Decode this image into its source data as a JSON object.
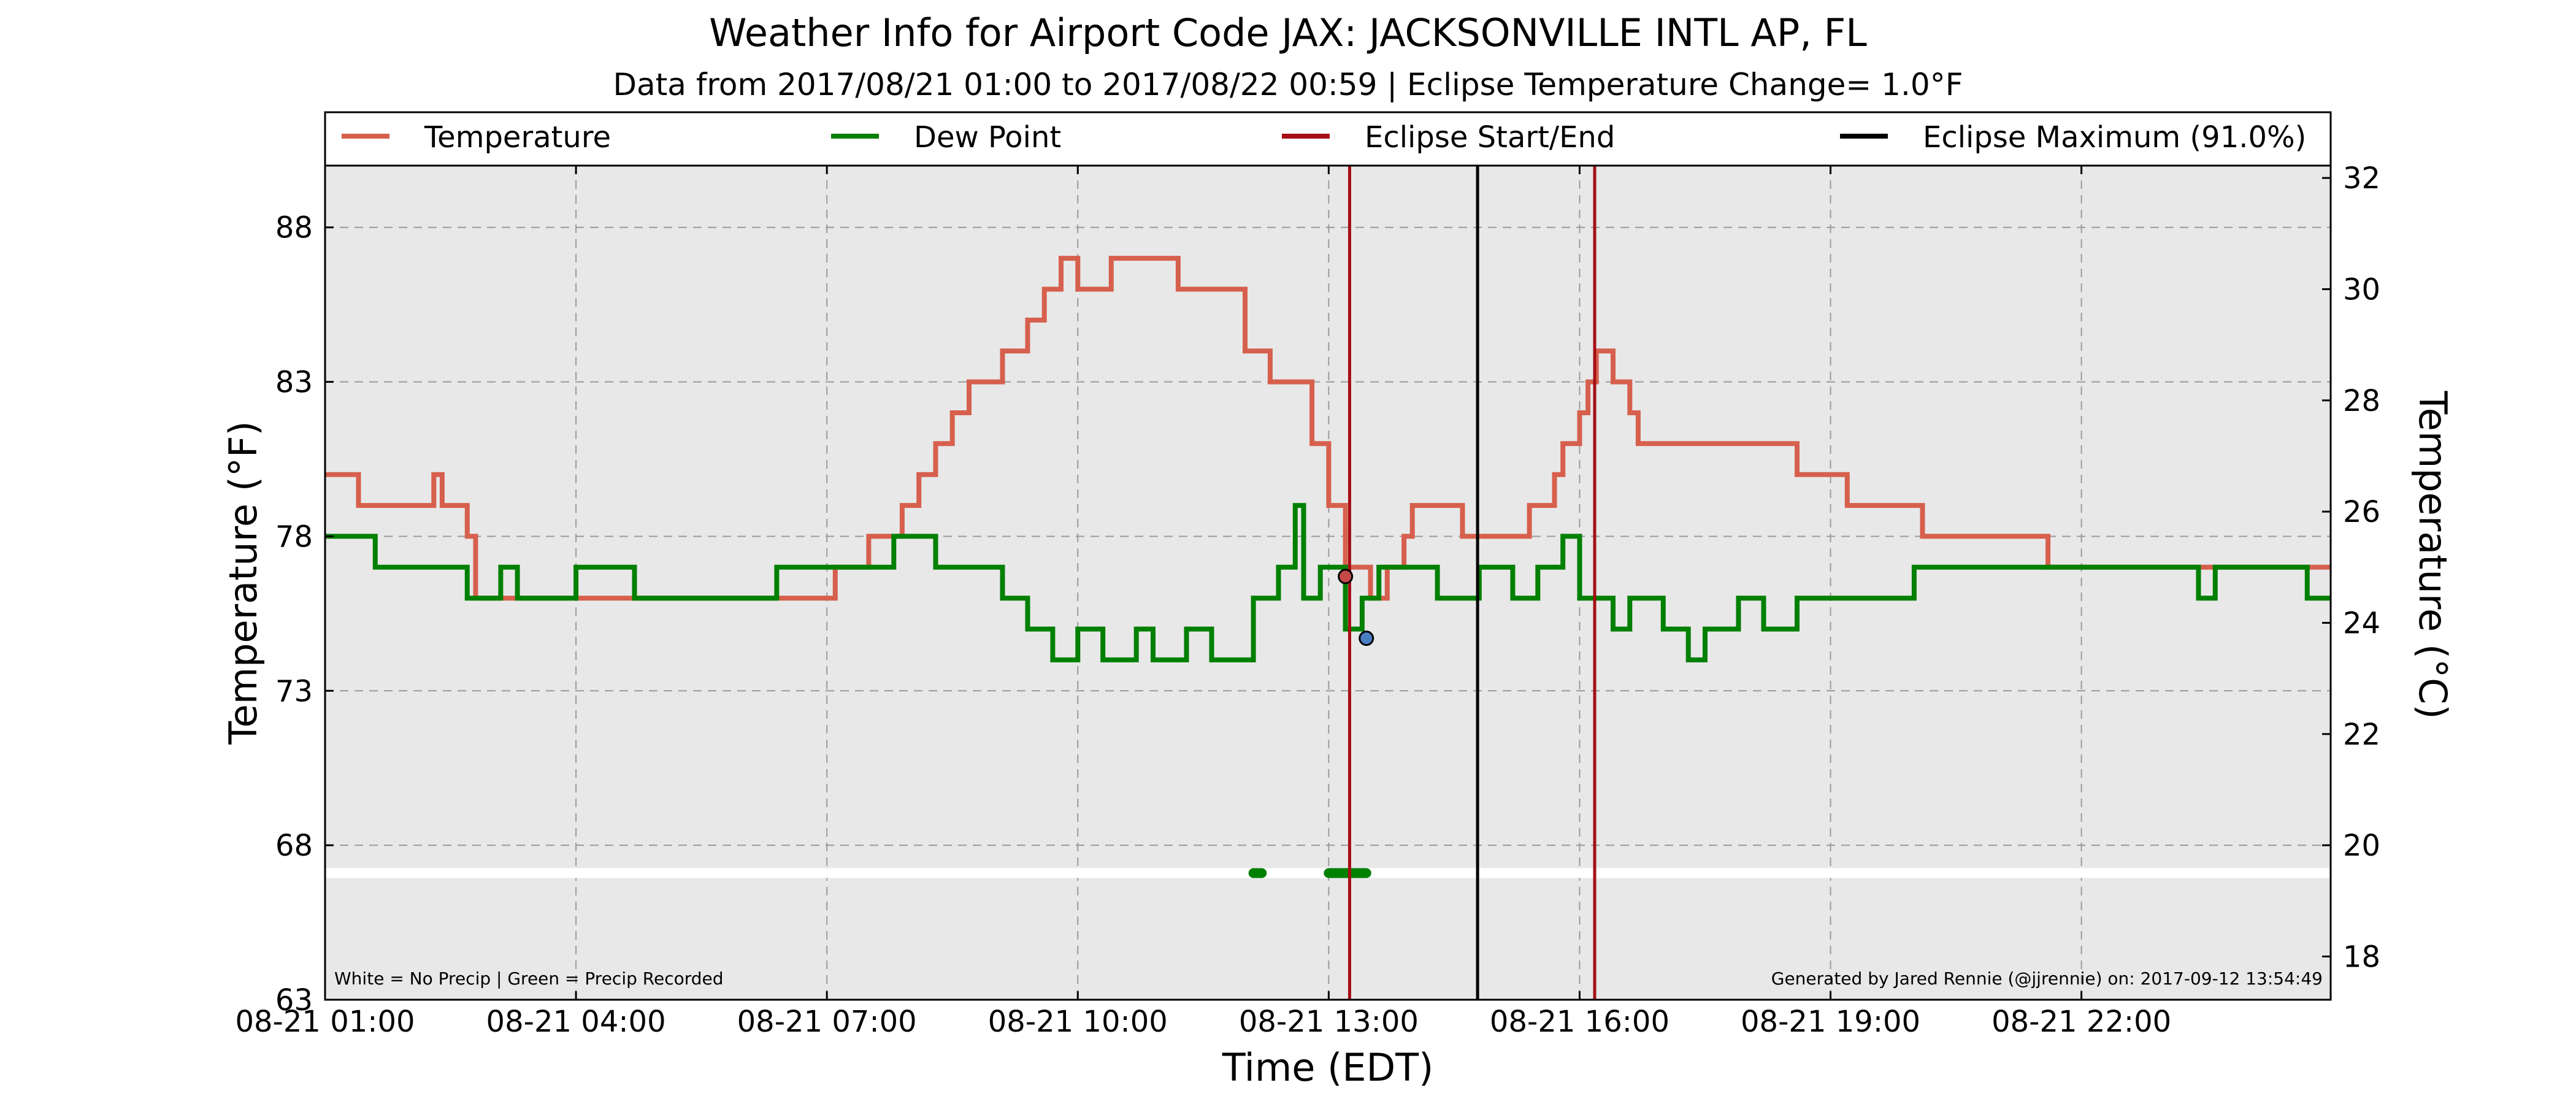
{
  "chart_data": {
    "type": "line",
    "title": "Weather Info for Airport Code JAX: JACKSONVILLE INTL AP, FL",
    "subtitle": "Data from 2017/08/21 01:00 to 2017/08/22 00:59 | Eclipse Temperature Change= 1.0°F",
    "xlabel": "Time (EDT)",
    "ylabel_left": "Temperature (°F)",
    "ylabel_right": "Temperature (°C)",
    "ylim_f": [
      63,
      90
    ],
    "xlim_hours": [
      1.0,
      24.98
    ],
    "x_ticks": [
      {
        "h": 1,
        "label": "08-21 01:00"
      },
      {
        "h": 4,
        "label": "08-21 04:00"
      },
      {
        "h": 7,
        "label": "08-21 07:00"
      },
      {
        "h": 10,
        "label": "08-21 10:00"
      },
      {
        "h": 13,
        "label": "08-21 13:00"
      },
      {
        "h": 16,
        "label": "08-21 16:00"
      },
      {
        "h": 19,
        "label": "08-21 19:00"
      },
      {
        "h": 22,
        "label": "08-21 22:00"
      }
    ],
    "y_ticks_f": [
      88,
      83,
      78,
      73,
      68,
      63
    ],
    "y_ticks_c": [
      32,
      30,
      28,
      26,
      24,
      22,
      20,
      18
    ],
    "grid": true,
    "legend_position": "top",
    "legend": [
      {
        "label": "Temperature",
        "color": "#d6604d"
      },
      {
        "label": "Dew Point",
        "color": "#008000"
      },
      {
        "label": "Eclipse Start/End",
        "color": "#a50f15"
      },
      {
        "label": "Eclipse Maximum (91.0%)",
        "color": "#000000"
      }
    ],
    "series": [
      {
        "name": "Temperature",
        "color": "#d6604d",
        "points": [
          [
            1.0,
            80
          ],
          [
            1.4,
            80
          ],
          [
            1.4,
            79
          ],
          [
            2.3,
            79
          ],
          [
            2.3,
            80
          ],
          [
            2.4,
            80
          ],
          [
            2.4,
            79
          ],
          [
            2.7,
            79
          ],
          [
            2.7,
            78
          ],
          [
            2.8,
            78
          ],
          [
            2.8,
            77
          ],
          [
            2.8,
            77
          ],
          [
            2.8,
            76
          ],
          [
            7.1,
            76
          ],
          [
            7.1,
            77
          ],
          [
            7.5,
            77
          ],
          [
            7.5,
            78
          ],
          [
            7.9,
            78
          ],
          [
            7.9,
            79
          ],
          [
            8.1,
            79
          ],
          [
            8.1,
            80
          ],
          [
            8.3,
            80
          ],
          [
            8.3,
            81
          ],
          [
            8.5,
            81
          ],
          [
            8.5,
            82
          ],
          [
            8.7,
            82
          ],
          [
            8.7,
            83
          ],
          [
            9.1,
            83
          ],
          [
            9.1,
            84
          ],
          [
            9.4,
            84
          ],
          [
            9.4,
            85
          ],
          [
            9.6,
            85
          ],
          [
            9.6,
            86
          ],
          [
            9.8,
            86
          ],
          [
            9.8,
            87
          ],
          [
            10.0,
            87
          ],
          [
            10.0,
            86
          ],
          [
            10.4,
            86
          ],
          [
            10.4,
            87
          ],
          [
            11.2,
            87
          ],
          [
            11.2,
            86
          ],
          [
            12.0,
            86
          ],
          [
            12.0,
            84
          ],
          [
            12.3,
            84
          ],
          [
            12.3,
            83
          ],
          [
            12.8,
            83
          ],
          [
            12.8,
            81
          ],
          [
            13.0,
            81
          ],
          [
            13.0,
            79
          ],
          [
            13.2,
            79
          ],
          [
            13.2,
            77
          ],
          [
            13.5,
            77
          ],
          [
            13.5,
            76
          ],
          [
            13.7,
            76
          ],
          [
            13.7,
            77
          ],
          [
            13.9,
            77
          ],
          [
            13.9,
            78
          ],
          [
            14.0,
            78
          ],
          [
            14.0,
            79
          ],
          [
            14.6,
            79
          ],
          [
            14.6,
            78
          ],
          [
            15.4,
            78
          ],
          [
            15.4,
            79
          ],
          [
            15.7,
            79
          ],
          [
            15.7,
            80
          ],
          [
            15.8,
            80
          ],
          [
            15.8,
            81
          ],
          [
            16.0,
            81
          ],
          [
            16.0,
            82
          ],
          [
            16.1,
            82
          ],
          [
            16.1,
            83
          ],
          [
            16.2,
            83
          ],
          [
            16.2,
            84
          ],
          [
            16.4,
            84
          ],
          [
            16.4,
            83
          ],
          [
            16.6,
            83
          ],
          [
            16.6,
            82
          ],
          [
            16.7,
            82
          ],
          [
            16.7,
            81
          ],
          [
            18.6,
            81
          ],
          [
            18.6,
            80
          ],
          [
            19.2,
            80
          ],
          [
            19.2,
            79
          ],
          [
            20.1,
            79
          ],
          [
            20.1,
            78
          ],
          [
            21.6,
            78
          ],
          [
            21.6,
            77
          ],
          [
            24.98,
            77
          ]
        ]
      },
      {
        "name": "Dew Point",
        "color": "#008000",
        "points": [
          [
            1.0,
            78
          ],
          [
            1.6,
            78
          ],
          [
            1.6,
            77
          ],
          [
            2.7,
            77
          ],
          [
            2.7,
            76
          ],
          [
            3.1,
            76
          ],
          [
            3.1,
            77
          ],
          [
            3.3,
            77
          ],
          [
            3.3,
            76
          ],
          [
            4.0,
            76
          ],
          [
            4.0,
            77
          ],
          [
            4.7,
            77
          ],
          [
            4.7,
            76
          ],
          [
            6.4,
            76
          ],
          [
            6.4,
            77
          ],
          [
            7.8,
            77
          ],
          [
            7.8,
            78
          ],
          [
            8.3,
            78
          ],
          [
            8.3,
            77
          ],
          [
            9.1,
            77
          ],
          [
            9.1,
            76
          ],
          [
            9.4,
            76
          ],
          [
            9.4,
            75
          ],
          [
            9.7,
            75
          ],
          [
            9.7,
            74
          ],
          [
            10.0,
            74
          ],
          [
            10.0,
            75
          ],
          [
            10.3,
            75
          ],
          [
            10.3,
            74
          ],
          [
            10.7,
            74
          ],
          [
            10.7,
            75
          ],
          [
            10.9,
            75
          ],
          [
            10.9,
            74
          ],
          [
            11.3,
            74
          ],
          [
            11.3,
            75
          ],
          [
            11.6,
            75
          ],
          [
            11.6,
            74
          ],
          [
            12.1,
            74
          ],
          [
            12.1,
            76
          ],
          [
            12.4,
            76
          ],
          [
            12.4,
            77
          ],
          [
            12.6,
            77
          ],
          [
            12.6,
            79
          ],
          [
            12.7,
            79
          ],
          [
            12.7,
            76
          ],
          [
            12.9,
            76
          ],
          [
            12.9,
            77
          ],
          [
            13.2,
            77
          ],
          [
            13.2,
            75
          ],
          [
            13.4,
            75
          ],
          [
            13.4,
            76
          ],
          [
            13.6,
            76
          ],
          [
            13.6,
            77
          ],
          [
            14.3,
            77
          ],
          [
            14.3,
            76
          ],
          [
            14.8,
            76
          ],
          [
            14.8,
            77
          ],
          [
            15.2,
            77
          ],
          [
            15.2,
            76
          ],
          [
            15.5,
            76
          ],
          [
            15.5,
            77
          ],
          [
            15.8,
            77
          ],
          [
            15.8,
            78
          ],
          [
            16.0,
            78
          ],
          [
            16.0,
            76
          ],
          [
            16.4,
            76
          ],
          [
            16.4,
            75
          ],
          [
            16.6,
            75
          ],
          [
            16.6,
            76
          ],
          [
            17.0,
            76
          ],
          [
            17.0,
            75
          ],
          [
            17.3,
            75
          ],
          [
            17.3,
            74
          ],
          [
            17.5,
            74
          ],
          [
            17.5,
            75
          ],
          [
            17.9,
            75
          ],
          [
            17.9,
            76
          ],
          [
            18.2,
            76
          ],
          [
            18.2,
            75
          ],
          [
            18.6,
            75
          ],
          [
            18.6,
            76
          ],
          [
            19.3,
            76
          ],
          [
            19.3,
            76
          ],
          [
            20.0,
            76
          ],
          [
            20.0,
            77
          ],
          [
            23.4,
            77
          ],
          [
            23.4,
            76
          ],
          [
            23.6,
            76
          ],
          [
            23.6,
            77
          ],
          [
            24.7,
            77
          ],
          [
            24.7,
            76
          ],
          [
            24.98,
            76
          ]
        ]
      }
    ],
    "eclipse_start_h": 13.25,
    "eclipse_end_h": 16.18,
    "eclipse_max_h": 14.78,
    "markers": [
      {
        "h": 13.2,
        "f": 76.7,
        "color": "#c6494a"
      },
      {
        "h": 13.45,
        "f": 74.7,
        "color": "#4a7ec0"
      }
    ],
    "precip_baseline_f": 67.1,
    "precip_green_segments": [
      [
        12.1,
        12.2
      ],
      [
        13.0,
        13.45
      ]
    ],
    "footer_left": "White = No Precip | Green = Precip Recorded",
    "footer_right": "Generated by Jared Rennie (@jjrennie) on: 2017-09-12 13:54:49"
  }
}
